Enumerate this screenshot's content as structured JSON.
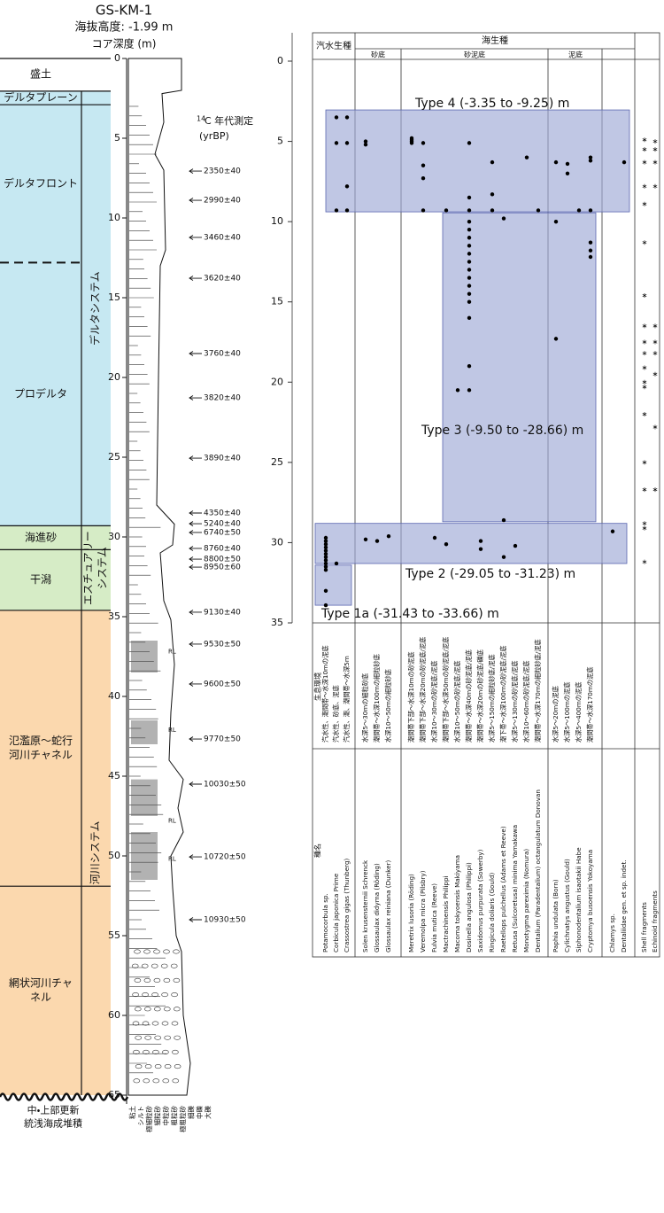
{
  "title": "GS-KM-1",
  "elevation": "海抜高度:  -1.99  m",
  "depth_axis_label": "コア深度 (m)",
  "depth_ticks": [
    0,
    5,
    10,
    15,
    20,
    25,
    30,
    35,
    40,
    45,
    50,
    55,
    60,
    65
  ],
  "facies": [
    {
      "lines": [
        "盛土"
      ],
      "range": [
        0,
        2.0
      ],
      "color": "#ffffff"
    },
    {
      "lines": [
        "デルタプレーン"
      ],
      "range": [
        2.05,
        2.9
      ],
      "color": "#c6e8f2"
    },
    {
      "lines": [
        "デルタフロント"
      ],
      "range": [
        2.9,
        12.8
      ],
      "color": "#c6e8f2"
    },
    {
      "lines": [
        "プロデルタ"
      ],
      "range": [
        12.8,
        29.3
      ],
      "color": "#c6e8f2"
    },
    {
      "lines": [
        "海進砂"
      ],
      "range": [
        29.3,
        30.8
      ],
      "color": "#d6ecc6"
    },
    {
      "lines": [
        "干潟"
      ],
      "range": [
        30.8,
        34.6
      ],
      "color": "#d6ecc6"
    },
    {
      "lines": [
        "氾濫原～蛇行",
        "河川チャネル"
      ],
      "range": [
        34.6,
        51.9
      ],
      "color": "#fbd8ae"
    },
    {
      "lines": [
        "網状河川チャ",
        "ネル"
      ],
      "range": [
        51.9,
        65.0
      ],
      "color": "#fbd8ae"
    }
  ],
  "systems": [
    {
      "lines": [
        "デルタシステム"
      ],
      "range": [
        2.05,
        29.3
      ],
      "color": "#c6e8f2"
    },
    {
      "lines": [
        "エスチュアリー",
        "システム"
      ],
      "range": [
        29.3,
        34.6
      ],
      "color": "#d6ecc6"
    },
    {
      "lines": [
        "河川システム"
      ],
      "range": [
        34.6,
        65.0
      ],
      "color": "#fbd8ae"
    }
  ],
  "base_label": [
    "中・上部更新",
    "統浅海成堆積"
  ],
  "dating": {
    "sup": "14",
    "label": "C 年代測定",
    "unit": "(yrBP)",
    "samples": [
      {
        "label": "2350±40",
        "depth": 7.06
      },
      {
        "label": "2990±40",
        "depth": 8.89
      },
      {
        "label": "3460±40",
        "depth": 11.22
      },
      {
        "label": "3620±40",
        "depth": 13.78
      },
      {
        "label": "3760±40",
        "depth": 18.5
      },
      {
        "label": "3820±40",
        "depth": 21.28
      },
      {
        "label": "3890±40",
        "depth": 25.06
      },
      {
        "label": "4350±40",
        "depth": 28.5
      },
      {
        "label": "5240±40",
        "depth": 29.17
      },
      {
        "label": "6740±50",
        "depth": 29.72
      },
      {
        "label": "8760±40",
        "depth": 30.72
      },
      {
        "label": "8800±50",
        "depth": 31.39
      },
      {
        "label": "8950±60",
        "depth": 31.89
      },
      {
        "label": "9130±40",
        "depth": 34.72
      },
      {
        "label": "9530±50",
        "depth": 36.72
      },
      {
        "label": "9600±50",
        "depth": 39.22
      },
      {
        "label": "9770±50",
        "depth": 42.67
      },
      {
        "label": "10030±50",
        "depth": 45.5
      },
      {
        "label": "10720±50",
        "depth": 50.06
      },
      {
        "label": "10930±50",
        "depth": 54.0
      }
    ]
  },
  "rl_labels": [
    {
      "label": "RL",
      "depth": 37.2
    },
    {
      "label": "RL",
      "depth": 42.1
    },
    {
      "label": "RL",
      "depth": 47.8
    },
    {
      "label": "RL",
      "depth": 50.2
    }
  ],
  "grain_sizes": [
    "粘土",
    "シルト",
    "極細粒砂",
    "細粒砂",
    "中粒砂",
    "粗粒砂",
    "極粗粒砂",
    "細礫",
    "中礫",
    "大礫"
  ],
  "fossil_chart": {
    "axis_ticks": [
      0,
      5,
      10,
      15,
      20,
      25,
      30,
      35
    ],
    "header": {
      "brackish": "汽水生種",
      "marine": "海生種",
      "sand": "砂底",
      "sandy_mud": "砂泥底",
      "mud": "泥底"
    },
    "row_labels": {
      "habitat": "生息環境",
      "species": "種名"
    },
    "species": [
      {
        "name": "Potamocorbula  sp.",
        "habitat": "汽水性、潮間帯～水深10mの泥底",
        "occurrences": [
          29.7,
          29.9,
          30.1,
          30.3,
          30.5,
          30.7,
          30.9,
          31.1,
          31.3,
          31.5,
          31.7,
          33.0,
          33.9
        ]
      },
      {
        "name": "Corbicula japonica  Prime",
        "habitat": "汽水性、砂底、泥底",
        "occurrences": [
          3.5,
          5.1,
          9.3,
          31.3
        ]
      },
      {
        "name": "Crassostrea gigas  (Thunberg)",
        "habitat": "汽水性、潮、潮間帯～水深5m",
        "occurrences": [
          3.5,
          5.1,
          7.8,
          9.3
        ]
      },
      {
        "name": "Solen krusensternii  Schrenck",
        "habitat": "水深5～30mの細粒砂底",
        "occurrences": [
          5.0,
          5.2,
          29.8
        ]
      },
      {
        "name": "Glossaulax didyma  (Röding)",
        "habitat": "潮間帯～水深100mの細粒砂底",
        "occurrences": [
          29.9
        ]
      },
      {
        "name": "Glossaulax reiniana  (Dunker)",
        "habitat": "水深10～50mの細粒砂底",
        "occurrences": [
          29.6
        ]
      },
      {
        "name": "Meretrix lusoria  (Röding)",
        "habitat": "潮間帯下部～水深10mの砂泥底",
        "occurrences": [
          4.8,
          4.9,
          5.0,
          5.1
        ]
      },
      {
        "name": "Veremolpa micra  (Pilsbry)",
        "habitat": "潮間帯下部～水深20mの砂泥底/泥底",
        "occurrences": [
          5.1,
          6.5,
          7.3,
          9.3
        ]
      },
      {
        "name": "Fulvia mutica  (Reeve)",
        "habitat": "水深10～30mの砂泥底/泥底",
        "occurrences": [
          29.7
        ]
      },
      {
        "name": "Mactrachinensis  Philippi",
        "habitat": "潮間帯下部～水深50mの砂泥底/泥底",
        "occurrences": [
          9.3,
          30.1
        ]
      },
      {
        "name": "Macoma tokyoensis  Makiyama",
        "habitat": "水深10～50mの砂泥底/泥底",
        "occurrences": [
          20.5
        ]
      },
      {
        "name": "Dosinella angulosa  (Philippi)",
        "habitat": "潮間帯～水深40mの砂泥底/泥底",
        "occurrences": [
          5.1,
          8.5,
          9.3,
          10.0,
          10.5,
          11.0,
          11.5,
          12.0,
          12.5,
          13.0,
          13.5,
          14.0,
          14.5,
          15.0,
          16.0,
          19.0,
          20.5
        ]
      },
      {
        "name": "Saxidomus purpurata  (Sowerby)",
        "habitat": "潮間帯～水深20mの砂泥底/礫底",
        "occurrences": [
          29.9,
          30.4
        ]
      },
      {
        "name": "Ringicula doliaris  (Gould)",
        "habitat": "水深5～150mの細粒砂底/泥底",
        "occurrences": [
          6.3,
          8.3,
          9.3
        ]
      },
      {
        "name": "Raetellops pulchellus  (Adams et Reeve)",
        "habitat": "潮下帯～水深100mの砂泥底/泥底",
        "occurrences": [
          9.8,
          28.6,
          30.9
        ]
      },
      {
        "name": "Retusa  (Sulcoretusa)  minima  Yamakawa",
        "habitat": "水深5～130mの砂泥底/泥底",
        "occurrences": [
          30.2
        ]
      },
      {
        "name": "Monotygma pareximia  (Nomura)",
        "habitat": "水深10～60mの砂泥底/泥底",
        "occurrences": [
          6.0
        ]
      },
      {
        "name": "Dentalium  (Paradentalium)  octangulatum  Donovan",
        "habitat": "潮間帯～水深170mの細粒砂底/泥底",
        "occurrences": [
          9.3
        ]
      },
      {
        "name": "Paphia undulata  (Born)",
        "habitat": "水深5～20mの泥底",
        "occurrences": [
          6.3,
          10.0,
          17.3
        ]
      },
      {
        "name": "Cylichnatys angustus  (Gould)",
        "habitat": "水深5～100mの泥底",
        "occurrences": [
          6.4,
          7.0
        ]
      },
      {
        "name": "Siphonodentalium isaotakii  Habe",
        "habitat": "水深5～400mの泥底",
        "occurrences": [
          9.3
        ]
      },
      {
        "name": "Cryptomya busoensis  Yokoyama",
        "habitat": "潮間帯～水深170mの泥底",
        "occurrences": [
          6.0,
          6.2,
          9.3,
          11.3,
          11.8,
          12.2
        ]
      },
      {
        "name": "Chlamys  sp.",
        "occurrences": [
          29.3
        ]
      },
      {
        "name": "Dentaliidae gen. et sp. indet.",
        "occurrences": [
          6.3
        ]
      },
      {
        "name": "Shell fragments",
        "occurrences": [
          4.9,
          5.5,
          6.3,
          7.8,
          8.9,
          11.3,
          14.6,
          16.5,
          17.5,
          18.2,
          19.1,
          20.0,
          20.3,
          22.0,
          25.0,
          26.7,
          28.8,
          29.1,
          31.2
        ]
      },
      {
        "name": "Echinoid fragments",
        "occurrences": [
          5.0,
          5.5,
          6.3,
          7.8,
          16.5,
          17.5,
          18.2,
          19.5,
          22.8,
          26.7
        ]
      }
    ],
    "types": [
      {
        "label": "Type  4  (-3.35  to  -9.25)  m",
        "range": [
          3.04,
          9.39
        ]
      },
      {
        "label": "Type  3  (-9.50  to  -28.66)  m",
        "range": [
          9.45,
          28.7
        ]
      },
      {
        "label": "Type  2  (-29.05  to  -31.23)  m",
        "range": [
          28.8,
          31.3
        ]
      },
      {
        "label": "Type  1a  (-31.43  to  -33.66)  m",
        "range": [
          31.4,
          33.9
        ]
      }
    ]
  }
}
